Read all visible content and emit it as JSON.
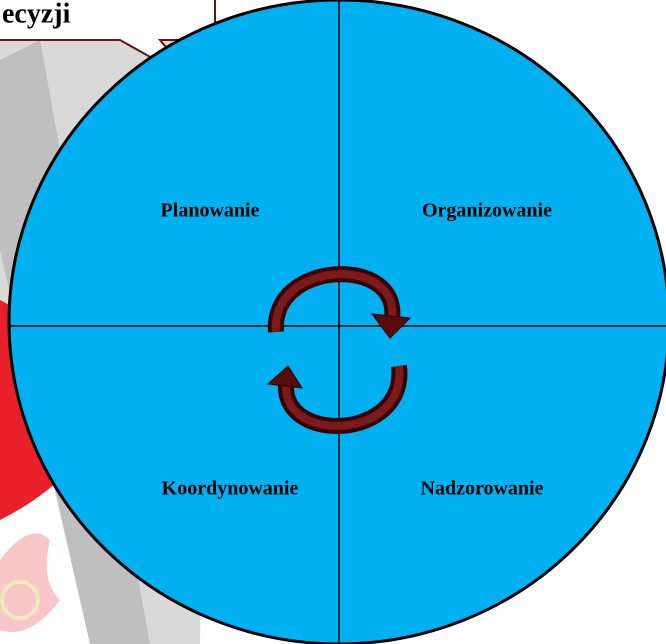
{
  "callout": {
    "text": "ecyzji"
  },
  "quadrants": [
    {
      "label": "Planowanie"
    },
    {
      "label": "Organizowanie"
    },
    {
      "label": "Koordynowanie"
    },
    {
      "label": "Nadzorowanie"
    }
  ]
}
